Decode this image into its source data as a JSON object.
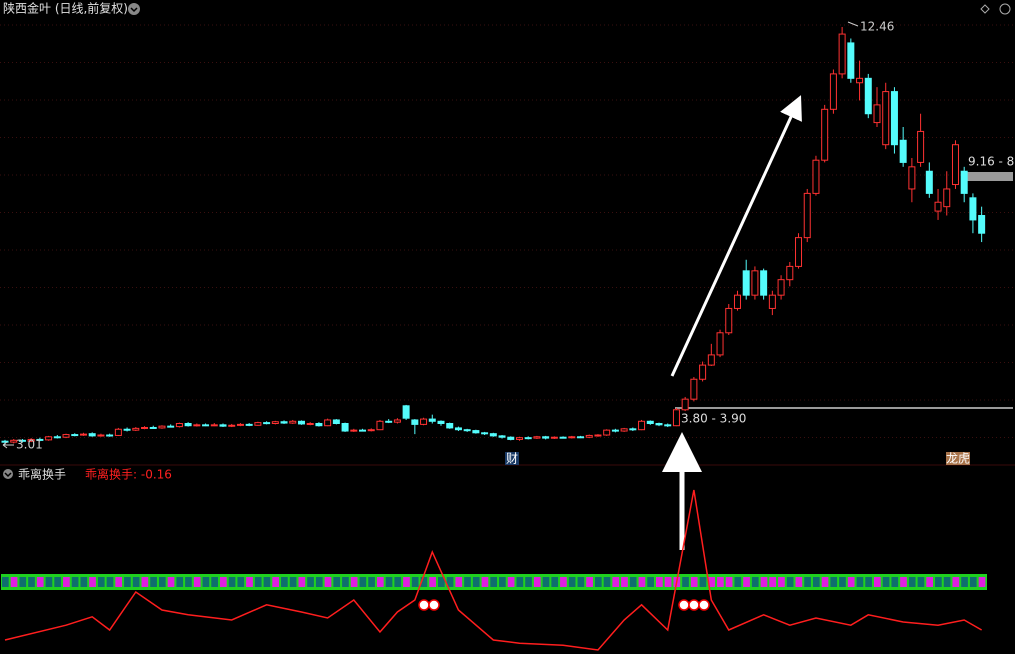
{
  "chart_data": [
    {
      "type": "candlestick",
      "title": "陕西金叶 (日线,前复权)",
      "ylim": [
        2.63,
        13.07
      ],
      "open": [
        3.1,
        3.08,
        3.12,
        3.1,
        3.14,
        3.13,
        3.2,
        3.19,
        3.25,
        3.24,
        3.27,
        3.22,
        3.24,
        3.23,
        3.37,
        3.35,
        3.39,
        3.41,
        3.4,
        3.44,
        3.43,
        3.5,
        3.45,
        3.47,
        3.46,
        3.47,
        3.44,
        3.46,
        3.48,
        3.46,
        3.52,
        3.5,
        3.54,
        3.51,
        3.55,
        3.49,
        3.5,
        3.45,
        3.58,
        3.5,
        3.33,
        3.35,
        3.34,
        3.36,
        3.55,
        3.53,
        3.9,
        3.58,
        3.48,
        3.6,
        3.55,
        3.5,
        3.4,
        3.36,
        3.34,
        3.29,
        3.27,
        3.22,
        3.19,
        3.14,
        3.18,
        3.17,
        3.2,
        3.17,
        3.19,
        3.18,
        3.2,
        3.19,
        3.23,
        3.24,
        3.35,
        3.33,
        3.38,
        3.36,
        3.55,
        3.5,
        3.47,
        3.45,
        3.81,
        4.05,
        4.5,
        4.82,
        5.05,
        5.55,
        6.1,
        6.95,
        6.4,
        6.95,
        6.1,
        6.4,
        6.75,
        7.05,
        7.7,
        8.7,
        9.45,
        10.6,
        11.4,
        12.1,
        11.2,
        11.3,
        10.3,
        9.8,
        11.0,
        9.9,
        8.8,
        9.4,
        9.2,
        8.3,
        8.4,
        8.9,
        9.2,
        8.6,
        8.2
      ],
      "close": [
        3.08,
        3.12,
        3.1,
        3.14,
        3.13,
        3.2,
        3.19,
        3.25,
        3.24,
        3.26,
        3.22,
        3.24,
        3.23,
        3.37,
        3.35,
        3.39,
        3.41,
        3.4,
        3.44,
        3.43,
        3.5,
        3.45,
        3.47,
        3.46,
        3.47,
        3.44,
        3.46,
        3.48,
        3.46,
        3.52,
        3.5,
        3.54,
        3.51,
        3.55,
        3.49,
        3.5,
        3.45,
        3.58,
        3.5,
        3.33,
        3.35,
        3.34,
        3.36,
        3.55,
        3.53,
        3.58,
        3.62,
        3.48,
        3.6,
        3.55,
        3.5,
        3.4,
        3.36,
        3.34,
        3.29,
        3.27,
        3.22,
        3.19,
        3.14,
        3.18,
        3.17,
        3.2,
        3.17,
        3.19,
        3.18,
        3.2,
        3.19,
        3.23,
        3.24,
        3.35,
        3.33,
        3.38,
        3.36,
        3.55,
        3.5,
        3.47,
        3.45,
        3.81,
        4.05,
        4.5,
        4.82,
        5.05,
        5.55,
        6.1,
        6.4,
        6.4,
        6.95,
        6.4,
        6.4,
        6.75,
        7.05,
        7.7,
        8.7,
        9.45,
        10.6,
        11.4,
        12.3,
        11.3,
        11.3,
        10.5,
        10.7,
        11.0,
        9.8,
        9.4,
        9.3,
        10.1,
        8.7,
        8.5,
        8.8,
        9.8,
        8.7,
        8.1,
        7.8
      ],
      "high": [
        3.13,
        3.15,
        3.15,
        3.17,
        3.18,
        3.22,
        3.24,
        3.27,
        3.28,
        3.29,
        3.3,
        3.27,
        3.27,
        3.4,
        3.41,
        3.42,
        3.44,
        3.45,
        3.46,
        3.48,
        3.52,
        3.53,
        3.5,
        3.5,
        3.51,
        3.5,
        3.49,
        3.51,
        3.51,
        3.54,
        3.55,
        3.56,
        3.57,
        3.58,
        3.57,
        3.53,
        3.53,
        3.61,
        3.6,
        3.52,
        3.38,
        3.38,
        3.39,
        3.58,
        3.6,
        3.62,
        3.92,
        3.6,
        3.63,
        3.7,
        3.57,
        3.52,
        3.43,
        3.38,
        3.36,
        3.31,
        3.29,
        3.24,
        3.21,
        3.2,
        3.21,
        3.22,
        3.22,
        3.21,
        3.21,
        3.22,
        3.22,
        3.25,
        3.26,
        3.37,
        3.38,
        3.4,
        3.41,
        3.58,
        3.57,
        3.52,
        3.5,
        3.85,
        4.1,
        4.55,
        4.9,
        5.3,
        5.62,
        6.2,
        6.5,
        7.2,
        7.05,
        7.0,
        6.5,
        6.85,
        7.15,
        7.8,
        8.8,
        9.55,
        10.7,
        11.5,
        12.46,
        12.2,
        11.7,
        11.4,
        11.1,
        11.2,
        11.1,
        10.2,
        9.5,
        10.5,
        9.4,
        8.8,
        9.2,
        9.9,
        9.3,
        8.7,
        8.4
      ],
      "low": [
        3.01,
        3.05,
        3.07,
        3.08,
        3.1,
        3.11,
        3.16,
        3.17,
        3.21,
        3.22,
        3.2,
        3.2,
        3.2,
        3.22,
        3.32,
        3.33,
        3.37,
        3.38,
        3.38,
        3.41,
        3.41,
        3.43,
        3.43,
        3.44,
        3.44,
        3.42,
        3.42,
        3.44,
        3.44,
        3.45,
        3.48,
        3.48,
        3.49,
        3.49,
        3.47,
        3.46,
        3.43,
        3.44,
        3.48,
        3.31,
        3.31,
        3.32,
        3.32,
        3.35,
        3.51,
        3.5,
        3.58,
        3.26,
        3.46,
        3.5,
        3.45,
        3.38,
        3.33,
        3.31,
        3.27,
        3.24,
        3.2,
        3.16,
        3.12,
        3.11,
        3.14,
        3.15,
        3.14,
        3.15,
        3.16,
        3.16,
        3.17,
        3.17,
        3.2,
        3.22,
        3.3,
        3.31,
        3.33,
        3.35,
        3.47,
        3.44,
        3.42,
        3.44,
        3.78,
        4.0,
        4.45,
        4.8,
        5.0,
        5.5,
        6.05,
        6.3,
        6.3,
        6.3,
        5.95,
        6.3,
        6.6,
        7.0,
        7.6,
        8.65,
        9.4,
        10.5,
        11.3,
        11.2,
        10.8,
        10.4,
        10.2,
        9.7,
        9.6,
        9.3,
        8.5,
        9.3,
        8.6,
        8.1,
        8.2,
        8.8,
        8.5,
        7.8,
        7.6
      ],
      "up_color": "#ff3232",
      "down_color": "#54fcfc",
      "max_label": 12.46,
      "min_label": 3.01,
      "range_labels": [
        "3.80 - 3.90",
        "9.16 - 8"
      ],
      "badges": [
        "财",
        "龙虎"
      ]
    },
    {
      "type": "line",
      "title": "乖离换手",
      "legend": "乖离换手: -0.16",
      "xlim": [
        0,
        112
      ],
      "ylim": [
        -0.76,
        3.84
      ],
      "x": [
        0,
        7,
        10,
        12,
        15,
        18,
        21,
        26,
        30,
        34,
        37,
        40,
        43,
        45,
        47,
        49,
        52,
        56,
        59,
        64,
        68,
        71,
        73,
        76,
        79,
        81,
        83,
        87,
        90,
        93,
        97,
        99,
        103,
        107,
        110,
        112
      ],
      "series": [
        {
          "name": "乖离换手",
          "color": "#ff1e1e",
          "values": [
            -0.41,
            -0.04,
            0.17,
            -0.16,
            0.79,
            0.34,
            0.22,
            0.09,
            0.47,
            0.29,
            0.14,
            0.59,
            -0.21,
            0.29,
            0.59,
            1.79,
            0.34,
            -0.41,
            -0.49,
            -0.54,
            -0.66,
            0.09,
            0.47,
            -0.16,
            3.34,
            0.59,
            -0.16,
            0.22,
            -0.04,
            0.14,
            -0.04,
            0.22,
            0.04,
            -0.04,
            0.09,
            -0.16
          ]
        }
      ]
    }
  ]
}
